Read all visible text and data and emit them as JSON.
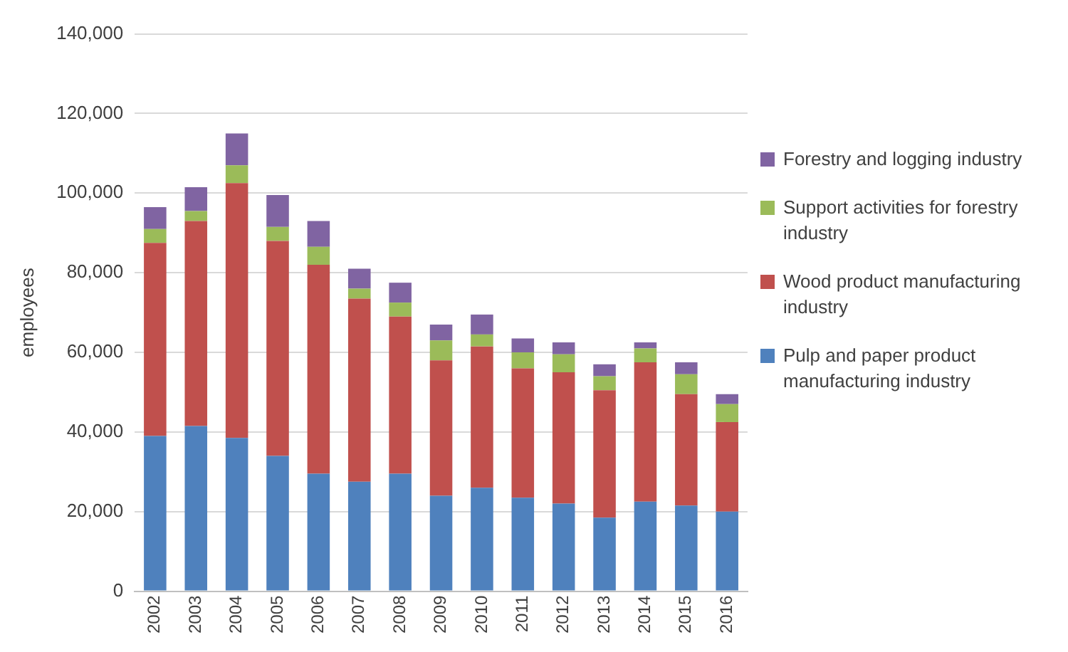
{
  "chart_data": {
    "type": "bar",
    "stacked": true,
    "ylabel": "employees",
    "categories": [
      "2002",
      "2003",
      "2004",
      "2005",
      "2006",
      "2007",
      "2008",
      "2009",
      "2010",
      "2011",
      "2012",
      "2013",
      "2014",
      "2015",
      "2016"
    ],
    "series": [
      {
        "name": "Pulp and paper product manufacturing industry",
        "color": "#4f81bd",
        "values": [
          39000,
          41500,
          38500,
          34000,
          29500,
          27500,
          29500,
          24000,
          26000,
          23500,
          22000,
          18500,
          22500,
          21500,
          20000
        ]
      },
      {
        "name": "Wood product manufacturing industry",
        "color": "#c0504d",
        "values": [
          48500,
          51500,
          64000,
          54000,
          52500,
          46000,
          39500,
          34000,
          35500,
          32500,
          33000,
          32000,
          35000,
          28000,
          22500
        ]
      },
      {
        "name": "Support activities for forestry industry",
        "color": "#9bbb59",
        "values": [
          3500,
          2500,
          4500,
          3500,
          4500,
          2500,
          3500,
          5000,
          3000,
          4000,
          4500,
          3500,
          3500,
          5000,
          4500
        ]
      },
      {
        "name": "Forestry and logging industry",
        "color": "#8064a2",
        "values": [
          5500,
          6000,
          8000,
          8000,
          6500,
          5000,
          5000,
          4000,
          5000,
          3500,
          3000,
          3000,
          1500,
          3000,
          2500
        ]
      }
    ],
    "ylim": [
      0,
      140000
    ],
    "yticks": [
      0,
      {
        "value": 20000,
        "label": "20,000"
      },
      {
        "value": 40000,
        "label": "40,000"
      },
      {
        "value": 60000,
        "label": "60,000"
      },
      {
        "value": 80000,
        "label": "80,000"
      },
      {
        "value": 100000,
        "label": "100,000"
      },
      {
        "value": 120000,
        "label": "120,000"
      },
      {
        "value": 140000,
        "label": "140,000"
      }
    ],
    "grid": "y",
    "legend": "right"
  }
}
